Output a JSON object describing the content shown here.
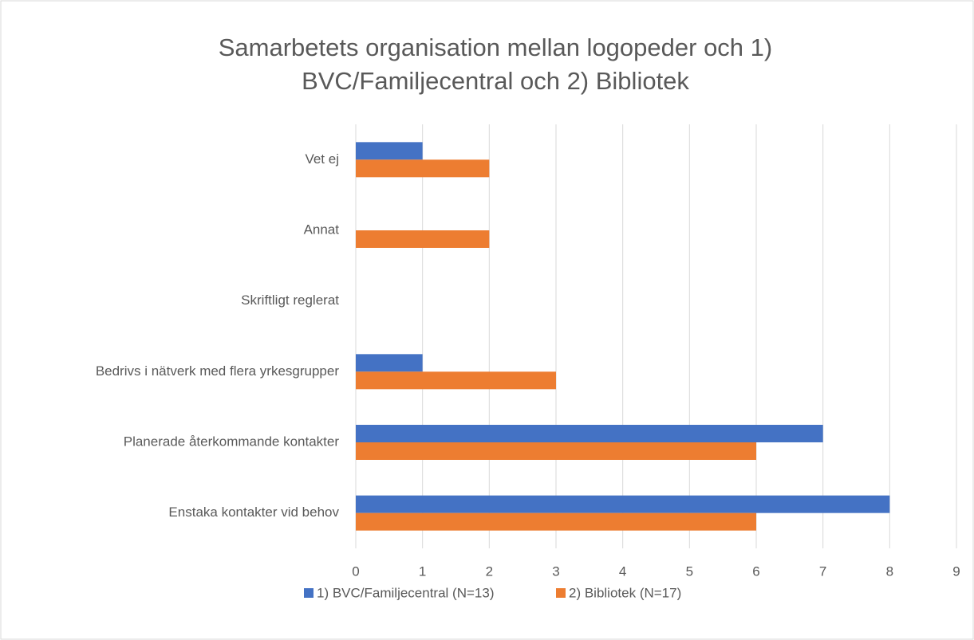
{
  "chart_data": {
    "type": "barh",
    "title": [
      "Samarbetets organisation mellan logopeder och 1)",
      "BVC/Familjecentral och 2) Bibliotek"
    ],
    "categories": [
      "Vet ej",
      "Annat",
      "Skriftligt reglerat",
      "Bedrivs i nätverk med flera yrkesgrupper",
      "Planerade återkommande kontakter",
      "Enstaka kontakter vid behov"
    ],
    "series": [
      {
        "name": "1) BVC/Familjecentral (N=13)",
        "color": "#4472c4",
        "values": [
          1,
          0,
          0,
          1,
          7,
          8
        ]
      },
      {
        "name": "2) Bibliotek (N=17)",
        "color": "#ed7d31",
        "values": [
          2,
          2,
          0,
          3,
          6,
          6
        ]
      }
    ],
    "xlim": [
      0,
      9
    ],
    "xticks": [
      0,
      1,
      2,
      3,
      4,
      5,
      6,
      7,
      8,
      9
    ],
    "grid": true,
    "legend": "bottom"
  }
}
